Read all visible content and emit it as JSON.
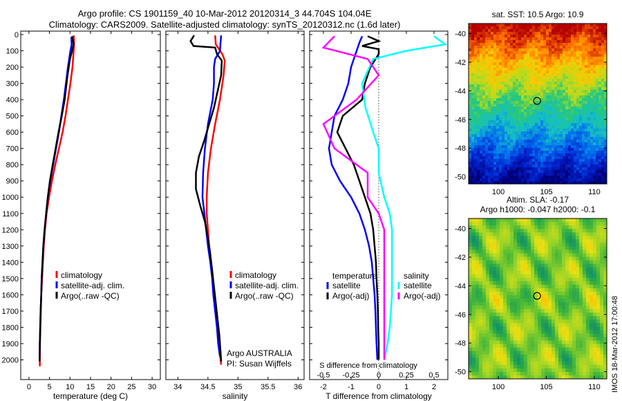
{
  "header": {
    "line1": "Argo profile: CS 1901159_40 10-Mar-2012 20120314_3 44.704S 104.04E",
    "line2": "Climatology: CARS2009. Satellite-adjusted climatology: synTS_20120312.nc (1.6d later)"
  },
  "stamp": "IMOS 18-Mar-2012 17:00:48",
  "colors": {
    "red": "#ff0000",
    "blue": "#0000ff",
    "black": "#000000",
    "cyan": "#00ffff",
    "magenta": "#ff00ff"
  },
  "chart_data": [
    {
      "type": "line",
      "xlabel": "temperature (deg C)",
      "ylim": [
        2100,
        0
      ],
      "xlim": [
        -2,
        32
      ],
      "xticks": [
        0,
        5,
        10,
        15,
        20,
        25,
        30
      ],
      "yticks": [
        0,
        100,
        200,
        300,
        400,
        500,
        600,
        700,
        800,
        900,
        1000,
        1100,
        1200,
        1300,
        1400,
        1500,
        1600,
        1700,
        1800,
        1900,
        2000
      ],
      "legend": [
        "climatology",
        "satellite-adj. clim.",
        "Argo(..raw -QC)"
      ],
      "series": [
        {
          "name": "climatology",
          "color": "#ff0000",
          "points": [
            [
              10.9,
              5
            ],
            [
              11.0,
              50
            ],
            [
              10.9,
              100
            ],
            [
              10.6,
              200
            ],
            [
              10.1,
              300
            ],
            [
              9.5,
              400
            ],
            [
              8.9,
              500
            ],
            [
              8.2,
              600
            ],
            [
              7.3,
              700
            ],
            [
              6.4,
              800
            ],
            [
              5.6,
              900
            ],
            [
              4.9,
              1000
            ],
            [
              4.3,
              1100
            ],
            [
              3.9,
              1200
            ],
            [
              3.6,
              1300
            ],
            [
              3.4,
              1400
            ],
            [
              3.2,
              1500
            ],
            [
              3.0,
              1600
            ],
            [
              2.9,
              1700
            ],
            [
              2.8,
              1800
            ],
            [
              2.7,
              1900
            ],
            [
              2.65,
              2040
            ]
          ]
        },
        {
          "name": "satellite-adj. clim.",
          "color": "#0000ff",
          "points": [
            [
              10.3,
              15
            ],
            [
              10.4,
              60
            ],
            [
              10.1,
              100
            ],
            [
              9.5,
              200
            ],
            [
              9.0,
              300
            ],
            [
              8.5,
              400
            ],
            [
              7.9,
              500
            ],
            [
              7.3,
              600
            ],
            [
              6.6,
              700
            ],
            [
              5.9,
              800
            ],
            [
              5.2,
              900
            ],
            [
              4.6,
              1000
            ],
            [
              4.2,
              1100
            ],
            [
              3.8,
              1200
            ],
            [
              3.5,
              1300
            ],
            [
              3.3,
              1400
            ],
            [
              3.1,
              1500
            ],
            [
              3.0,
              1600
            ],
            [
              2.85,
              1700
            ],
            [
              2.75,
              1800
            ],
            [
              2.65,
              1900
            ],
            [
              2.6,
              1980
            ]
          ]
        },
        {
          "name": "Argo(..raw -QC)",
          "color": "#000000",
          "points": [
            [
              10.5,
              10
            ],
            [
              10.9,
              60
            ],
            [
              10.5,
              100
            ],
            [
              10.0,
              150
            ],
            [
              9.4,
              250
            ],
            [
              8.7,
              400
            ],
            [
              8.0,
              500
            ],
            [
              7.2,
              600
            ],
            [
              6.5,
              700
            ],
            [
              5.8,
              800
            ],
            [
              5.1,
              900
            ],
            [
              4.6,
              1000
            ],
            [
              4.2,
              1100
            ],
            [
              3.8,
              1200
            ],
            [
              3.5,
              1300
            ],
            [
              3.3,
              1400
            ],
            [
              3.1,
              1500
            ],
            [
              3.0,
              1600
            ],
            [
              2.85,
              1700
            ],
            [
              2.75,
              1800
            ],
            [
              2.65,
              1900
            ],
            [
              2.6,
              2010
            ]
          ]
        }
      ]
    },
    {
      "type": "line",
      "xlabel": "salinity",
      "ylim": [
        2100,
        0
      ],
      "xlim": [
        33.8,
        36.1
      ],
      "xticks": [
        34,
        34.5,
        35,
        35.5,
        36
      ],
      "xticklabels": [
        "34",
        "34.5",
        "35",
        "35.5",
        "36"
      ],
      "legend": [
        "climatology",
        "satellite-adj. clim.",
        "Argo(..raw -QC)"
      ],
      "annotation": [
        "Argo AUSTRALIA",
        "PI: Susan Wijffels"
      ],
      "series": [
        {
          "name": "climatology",
          "color": "#ff0000",
          "points": [
            [
              34.62,
              5
            ],
            [
              34.63,
              60
            ],
            [
              34.74,
              120
            ],
            [
              34.78,
              160
            ],
            [
              34.76,
              250
            ],
            [
              34.7,
              400
            ],
            [
              34.62,
              550
            ],
            [
              34.55,
              700
            ],
            [
              34.5,
              850
            ],
            [
              34.48,
              1000
            ],
            [
              34.48,
              1100
            ],
            [
              34.5,
              1200
            ],
            [
              34.52,
              1300
            ],
            [
              34.55,
              1400
            ],
            [
              34.58,
              1500
            ],
            [
              34.6,
              1600
            ],
            [
              34.63,
              1700
            ],
            [
              34.66,
              1800
            ],
            [
              34.68,
              1900
            ],
            [
              34.72,
              2030
            ]
          ]
        },
        {
          "name": "satellite-adj. clim.",
          "color": "#0000ff",
          "points": [
            [
              34.72,
              5
            ],
            [
              34.71,
              50
            ],
            [
              34.7,
              100
            ],
            [
              34.62,
              150
            ],
            [
              34.6,
              200
            ],
            [
              34.6,
              300
            ],
            [
              34.58,
              400
            ],
            [
              34.5,
              550
            ],
            [
              34.45,
              700
            ],
            [
              34.42,
              850
            ],
            [
              34.41,
              1000
            ],
            [
              34.44,
              1100
            ],
            [
              34.47,
              1200
            ],
            [
              34.5,
              1300
            ],
            [
              34.54,
              1400
            ],
            [
              34.57,
              1500
            ],
            [
              34.59,
              1600
            ],
            [
              34.62,
              1700
            ],
            [
              34.65,
              1800
            ],
            [
              34.67,
              1900
            ],
            [
              34.7,
              1980
            ]
          ]
        },
        {
          "name": "Argo(..raw -QC)",
          "color": "#000000",
          "points": [
            [
              34.27,
              5
            ],
            [
              34.21,
              40
            ],
            [
              34.26,
              70
            ],
            [
              34.62,
              80
            ],
            [
              34.65,
              120
            ],
            [
              34.73,
              160
            ],
            [
              34.72,
              250
            ],
            [
              34.66,
              350
            ],
            [
              34.6,
              450
            ],
            [
              34.52,
              550
            ],
            [
              34.44,
              650
            ],
            [
              34.35,
              750
            ],
            [
              34.3,
              850
            ],
            [
              34.3,
              950
            ],
            [
              34.37,
              1050
            ],
            [
              34.45,
              1150
            ],
            [
              34.5,
              1250
            ],
            [
              34.54,
              1350
            ],
            [
              34.57,
              1450
            ],
            [
              34.6,
              1550
            ],
            [
              34.63,
              1650
            ],
            [
              34.66,
              1750
            ],
            [
              34.69,
              1850
            ],
            [
              34.71,
              1950
            ],
            [
              34.72,
              2010
            ]
          ]
        }
      ]
    },
    {
      "type": "line",
      "xlabel": "T difference from climatology",
      "toplabel": "S difference from climatology",
      "ylim": [
        2100,
        0
      ],
      "xlim": [
        -2.5,
        2.5
      ],
      "xticks": [
        -2,
        -1,
        0,
        1,
        2
      ],
      "sticks": [
        -0.5,
        -0.25,
        0,
        0.25,
        0.5
      ],
      "legend_temperature_title": "temperature",
      "legend_salinity_title": "salinity",
      "legend_temperature": [
        "satellite",
        "Argo(-adj)"
      ],
      "legend_salinity": [
        "satellite",
        "Argo(-adj)"
      ],
      "series": [
        {
          "name": "satellite",
          "group": "temperature",
          "color": "#0000ff",
          "points": [
            [
              -0.6,
              10
            ],
            [
              -0.7,
              50
            ],
            [
              -0.8,
              100
            ],
            [
              -1.0,
              200
            ],
            [
              -1.1,
              300
            ],
            [
              -1.3,
              400
            ],
            [
              -1.6,
              500
            ],
            [
              -1.7,
              600
            ],
            [
              -1.8,
              700
            ],
            [
              -1.7,
              800
            ],
            [
              -1.4,
              900
            ],
            [
              -1.0,
              1000
            ],
            [
              -0.7,
              1100
            ],
            [
              -0.5,
              1200
            ],
            [
              -0.35,
              1300
            ],
            [
              -0.25,
              1400
            ],
            [
              -0.2,
              1500
            ],
            [
              -0.15,
              1600
            ],
            [
              -0.12,
              1700
            ],
            [
              -0.1,
              1800
            ],
            [
              -0.08,
              1900
            ],
            [
              -0.05,
              2000
            ]
          ]
        },
        {
          "name": "Argo(-adj)",
          "group": "temperature",
          "color": "#000000",
          "points": [
            [
              -0.4,
              10
            ],
            [
              0.0,
              40
            ],
            [
              -0.6,
              70
            ],
            [
              0.0,
              90
            ],
            [
              0.0,
              120
            ],
            [
              -0.3,
              200
            ],
            [
              -0.5,
              300
            ],
            [
              -0.6,
              400
            ],
            [
              -1.3,
              500
            ],
            [
              -1.5,
              600
            ],
            [
              -1.2,
              700
            ],
            [
              -0.9,
              800
            ],
            [
              -0.7,
              900
            ],
            [
              -0.5,
              1000
            ],
            [
              -0.3,
              1100
            ],
            [
              -0.2,
              1200
            ],
            [
              -0.15,
              1300
            ],
            [
              -0.1,
              1400
            ],
            [
              -0.08,
              1500
            ],
            [
              -0.05,
              1600
            ],
            [
              -0.03,
              1700
            ],
            [
              -0.02,
              1800
            ],
            [
              0.0,
              1900
            ],
            [
              0.0,
              2000
            ]
          ]
        },
        {
          "name": "satellite",
          "group": "salinity",
          "color": "#00ffff",
          "points": [
            [
              0.5,
              10
            ],
            [
              0.6,
              60
            ],
            [
              0.25,
              100
            ],
            [
              -0.05,
              150
            ],
            [
              -0.15,
              300
            ],
            [
              -0.12,
              450
            ],
            [
              -0.05,
              600
            ],
            [
              0.0,
              700
            ],
            [
              0.0,
              850
            ],
            [
              0.05,
              1000
            ],
            [
              0.1,
              1100
            ],
            [
              0.12,
              1200
            ],
            [
              0.12,
              1400
            ],
            [
              0.12,
              1600
            ],
            [
              0.1,
              1800
            ],
            [
              0.08,
              1900
            ],
            [
              0.05,
              2000
            ]
          ]
        },
        {
          "name": "Argo(-adj)",
          "group": "salinity",
          "color": "#ff00ff",
          "points": [
            [
              -0.4,
              10
            ],
            [
              -0.5,
              80
            ],
            [
              -0.1,
              150
            ],
            [
              0.0,
              250
            ],
            [
              -0.2,
              400
            ],
            [
              -0.5,
              550
            ],
            [
              -0.4,
              700
            ],
            [
              -0.1,
              850
            ],
            [
              -0.1,
              1000
            ],
            [
              0.0,
              1100
            ],
            [
              0.05,
              1200
            ],
            [
              0.05,
              1400
            ],
            [
              0.05,
              1600
            ],
            [
              0.05,
              1800
            ],
            [
              0.05,
              2000
            ]
          ]
        }
      ]
    }
  ],
  "maps": {
    "sst_title": "sat. SST: 10.5 Argo: 10.9",
    "sla_title1": "Altim. SLA: -0.17",
    "sla_title2": "Argo h1000: -0.047 h2000: -0.1",
    "lat_ticks": [
      -40,
      -42,
      -44,
      -46,
      -48,
      -50
    ],
    "lon_ticks": [
      100,
      105,
      110
    ],
    "lon_range": [
      96.9,
      111.3
    ],
    "lat_range": [
      -50.5,
      -39.3
    ],
    "argo_position": {
      "lon": 104.04,
      "lat": -44.704
    }
  }
}
